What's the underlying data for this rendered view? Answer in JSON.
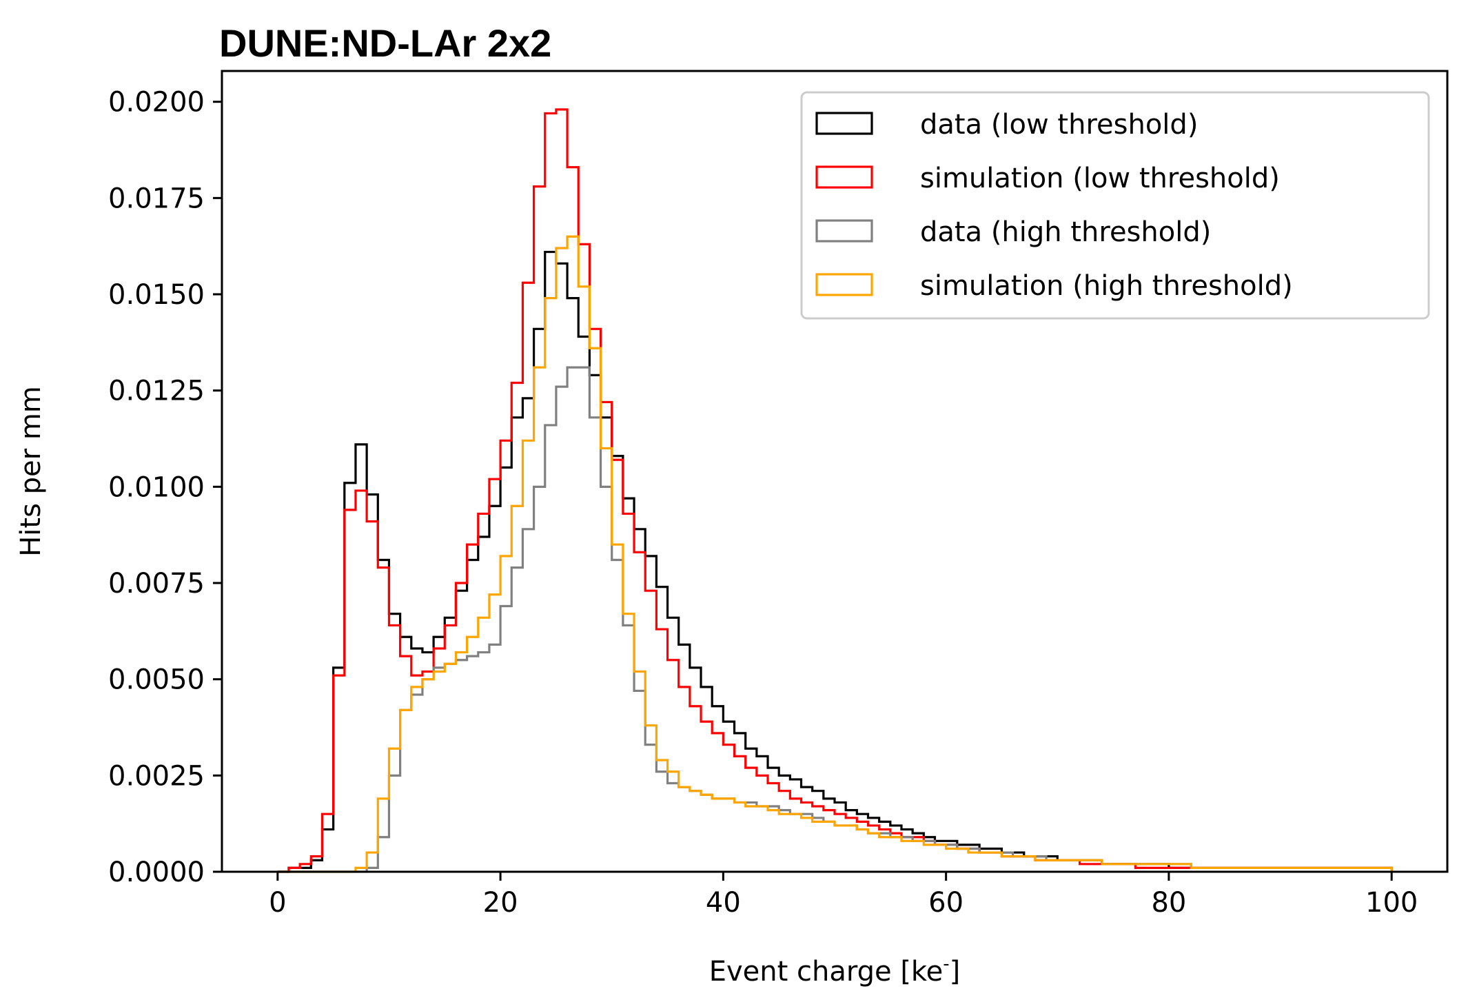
{
  "chart_data": {
    "type": "histogram-step",
    "title": "DUNE:ND-LAr 2x2",
    "xlabel": "Event charge [ke",
    "xlabel_superscript": "-",
    "xlabel_suffix": "]",
    "ylabel": "Hits per mm",
    "xlim": [
      -5,
      105
    ],
    "ylim": [
      0,
      0.0208
    ],
    "xticks": [
      0,
      20,
      40,
      60,
      80,
      100
    ],
    "xtick_labels": [
      "0",
      "20",
      "40",
      "60",
      "80",
      "100"
    ],
    "yticks": [
      0,
      0.0025,
      0.005,
      0.0075,
      0.01,
      0.0125,
      0.015,
      0.0175,
      0.02
    ],
    "ytick_labels": [
      "0.0000",
      "0.0025",
      "0.0050",
      "0.0075",
      "0.0100",
      "0.0125",
      "0.0150",
      "0.0175",
      "0.0200"
    ],
    "bin_start": 0,
    "bin_width": 1,
    "legend_position": "upper-right",
    "series": [
      {
        "name": "data (low threshold)",
        "color": "#000000",
        "values": [
          0,
          0.0001,
          0.0001,
          0.0003,
          0.0011,
          0.0053,
          0.0101,
          0.0111,
          0.0098,
          0.0081,
          0.0067,
          0.0061,
          0.0058,
          0.0057,
          0.0061,
          0.0066,
          0.0073,
          0.0081,
          0.0087,
          0.0095,
          0.0105,
          0.0118,
          0.0123,
          0.0141,
          0.0161,
          0.0158,
          0.0149,
          0.0139,
          0.0129,
          0.0118,
          0.0108,
          0.0097,
          0.0089,
          0.0082,
          0.0074,
          0.0066,
          0.0059,
          0.0053,
          0.0048,
          0.0043,
          0.0039,
          0.0036,
          0.0032,
          0.003,
          0.0027,
          0.0025,
          0.0024,
          0.0022,
          0.0021,
          0.0019,
          0.0018,
          0.0016,
          0.0015,
          0.0014,
          0.0013,
          0.0012,
          0.0011,
          0.001,
          0.0009,
          0.0008,
          0.0008,
          0.0007,
          0.0007,
          0.0006,
          0.0006,
          0.0005,
          0.0005,
          0.0004,
          0.0004,
          0.0004,
          0.0003,
          0.0003,
          0.0003,
          0.0003,
          0.0002,
          0.0002,
          0.0002,
          0.0002,
          0.0002,
          0.0002,
          0.0001,
          0.0001,
          0.0001,
          0.0001,
          0.0001,
          0.0001,
          0.0001,
          0.0001,
          0.0001,
          0.0001,
          0.0001,
          0.0001,
          0.0001,
          0.0001,
          0.0001,
          0.0001,
          0.0001,
          0.0001,
          0.0001,
          0.0001
        ]
      },
      {
        "name": "simulation (low threshold)",
        "color": "#ff0000",
        "values": [
          0,
          0.0001,
          0.0002,
          0.0004,
          0.0015,
          0.0051,
          0.0094,
          0.0099,
          0.0091,
          0.0079,
          0.0064,
          0.0056,
          0.0051,
          0.0052,
          0.0058,
          0.0064,
          0.0075,
          0.0085,
          0.0093,
          0.0102,
          0.0112,
          0.0127,
          0.0153,
          0.0178,
          0.0197,
          0.0198,
          0.0183,
          0.0163,
          0.0141,
          0.0122,
          0.0107,
          0.0093,
          0.0083,
          0.0073,
          0.0063,
          0.0055,
          0.0048,
          0.0043,
          0.0039,
          0.0036,
          0.0033,
          0.003,
          0.0027,
          0.0025,
          0.0023,
          0.0021,
          0.0019,
          0.0018,
          0.0017,
          0.0016,
          0.0015,
          0.0014,
          0.0013,
          0.0012,
          0.0011,
          0.001,
          0.0009,
          0.0009,
          0.0008,
          0.0007,
          0.0007,
          0.0006,
          0.0006,
          0.0005,
          0.0005,
          0.0004,
          0.0004,
          0.0004,
          0.0003,
          0.0003,
          0.0003,
          0.0003,
          0.0002,
          0.0002,
          0.0002,
          0.0002,
          0.0002,
          0.0001,
          0.0001,
          0.0001,
          0.0001,
          0.0001,
          0.0001,
          0.0001,
          0.0001,
          0.0001,
          0.0001,
          0.0001,
          0.0001,
          0.0001,
          0.0001,
          0.0001,
          0.0001,
          0.0001,
          0.0001,
          0.0001,
          0.0001,
          0.0001,
          0.0001,
          0.0001
        ]
      },
      {
        "name": "data (high threshold)",
        "color": "#808080",
        "values": [
          0,
          0,
          0,
          0,
          0,
          0,
          0,
          0,
          0.0001,
          0.0009,
          0.0025,
          0.0042,
          0.0046,
          0.005,
          0.0053,
          0.0054,
          0.0055,
          0.0056,
          0.0057,
          0.0059,
          0.0069,
          0.0079,
          0.0089,
          0.01,
          0.0116,
          0.0126,
          0.0131,
          0.0131,
          0.0118,
          0.01,
          0.0081,
          0.0064,
          0.0047,
          0.0033,
          0.0026,
          0.0023,
          0.0022,
          0.0021,
          0.002,
          0.0019,
          0.0019,
          0.0018,
          0.0018,
          0.0017,
          0.0017,
          0.0016,
          0.0015,
          0.0015,
          0.0014,
          0.0013,
          0.0012,
          0.0012,
          0.0011,
          0.001,
          0.001,
          0.0009,
          0.0009,
          0.0008,
          0.0008,
          0.0007,
          0.0007,
          0.0006,
          0.0006,
          0.0005,
          0.0005,
          0.0005,
          0.0004,
          0.0004,
          0.0004,
          0.0003,
          0.0003,
          0.0003,
          0.0003,
          0.0003,
          0.0002,
          0.0002,
          0.0002,
          0.0002,
          0.0002,
          0.0002,
          0.0002,
          0.0002,
          0.0001,
          0.0001,
          0.0001,
          0.0001,
          0.0001,
          0.0001,
          0.0001,
          0.0001,
          0.0001,
          0.0001,
          0.0001,
          0.0001,
          0.0001,
          0.0001,
          0.0001,
          0.0001,
          0.0001,
          0.0001
        ]
      },
      {
        "name": "simulation (high threshold)",
        "color": "#ffa500",
        "values": [
          0,
          0,
          0,
          0,
          0,
          0,
          0,
          0.0001,
          0.0005,
          0.0019,
          0.0032,
          0.0042,
          0.0048,
          0.005,
          0.0052,
          0.0054,
          0.0057,
          0.0061,
          0.0066,
          0.0072,
          0.0082,
          0.0095,
          0.0112,
          0.0131,
          0.0149,
          0.0162,
          0.0165,
          0.0152,
          0.0136,
          0.011,
          0.0085,
          0.0067,
          0.0052,
          0.0038,
          0.0029,
          0.0026,
          0.0022,
          0.0021,
          0.002,
          0.0019,
          0.0019,
          0.0018,
          0.0017,
          0.0017,
          0.0016,
          0.0015,
          0.0015,
          0.0014,
          0.0013,
          0.0013,
          0.0012,
          0.0012,
          0.0011,
          0.001,
          0.0009,
          0.0009,
          0.0008,
          0.0008,
          0.0007,
          0.0007,
          0.0006,
          0.0006,
          0.0005,
          0.0005,
          0.0005,
          0.0004,
          0.0004,
          0.0004,
          0.0003,
          0.0003,
          0.0003,
          0.0003,
          0.0003,
          0.0003,
          0.0002,
          0.0002,
          0.0002,
          0.0002,
          0.0002,
          0.0002,
          0.0002,
          0.0002,
          0.0001,
          0.0001,
          0.0001,
          0.0001,
          0.0001,
          0.0001,
          0.0001,
          0.0001,
          0.0001,
          0.0001,
          0.0001,
          0.0001,
          0.0001,
          0.0001,
          0.0001,
          0.0001,
          0.0001,
          0.0001
        ]
      }
    ]
  }
}
